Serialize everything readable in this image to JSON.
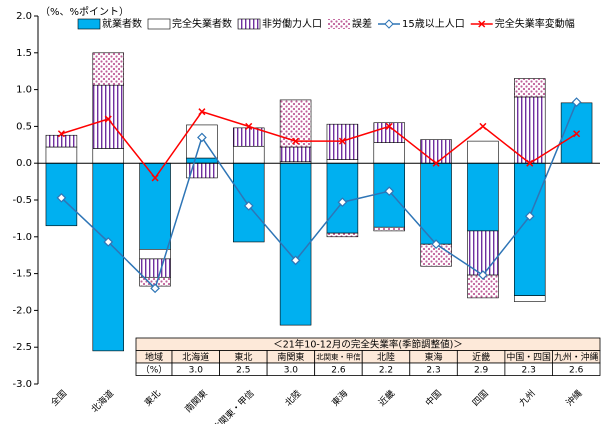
{
  "chart_data": {
    "type": "bar",
    "y_axis_label": "（%、%ポイント）",
    "categories": [
      "全国",
      "北海道",
      "東北",
      "南関東",
      "北関東・甲信",
      "北陸",
      "東海",
      "近畿",
      "中国",
      "四国",
      "九州",
      "沖縄"
    ],
    "ylim": [
      -3.0,
      2.0
    ],
    "yticks": [
      {
        "value": 2.0,
        "label": "2.0"
      },
      {
        "value": 1.5,
        "label": "1.5"
      },
      {
        "value": 1.0,
        "label": "1.0"
      },
      {
        "value": 0.5,
        "label": "0.5"
      },
      {
        "value": 0.0,
        "label": "0.0"
      },
      {
        "value": -0.5,
        "label": "-0.5"
      },
      {
        "value": -1.0,
        "label": "-1.0"
      },
      {
        "value": -1.5,
        "label": "-1.5"
      },
      {
        "value": -2.0,
        "label": "-2.0"
      },
      {
        "value": -2.5,
        "label": "-2.5"
      },
      {
        "value": -3.0,
        "label": "-3.0"
      }
    ],
    "series": [
      {
        "name": "就業者数",
        "type": "bar",
        "color": "#00b0f0",
        "pattern": "solid",
        "values": [
          -0.85,
          -2.55,
          -1.17,
          0.07,
          -1.07,
          -2.2,
          -0.95,
          -0.87,
          -1.1,
          -0.92,
          -1.8,
          0.82
        ]
      },
      {
        "name": "完全失業者数",
        "type": "bar",
        "color": "#ffffff",
        "pattern": "solid",
        "values": [
          0.22,
          0.2,
          -0.13,
          0.45,
          0.23,
          0.02,
          0.05,
          0.28,
          0,
          0.3,
          -0.08,
          0
        ]
      },
      {
        "name": "非労働力人口",
        "type": "bar",
        "color": "#7030a0",
        "pattern": "stripes",
        "values": [
          0.16,
          0.86,
          -0.25,
          -0.2,
          0.25,
          0.2,
          0.48,
          0.27,
          0.32,
          -0.6,
          0.9,
          0
        ]
      },
      {
        "name": "誤差",
        "type": "bar",
        "color": "#c0609a",
        "pattern": "dots",
        "values": [
          0,
          0.44,
          -0.12,
          0,
          0,
          0.64,
          -0.05,
          -0.05,
          -0.3,
          -0.31,
          0.25,
          0
        ]
      },
      {
        "name": "15歳以上人口",
        "type": "line",
        "color": "#2e75b6",
        "marker": "diamond",
        "values": [
          -0.47,
          -1.07,
          -1.7,
          0.35,
          -0.58,
          -1.32,
          -0.53,
          -0.38,
          -1.1,
          -1.52,
          -0.72,
          0.83
        ]
      },
      {
        "name": "完全失業率変動幅",
        "type": "line",
        "color": "#ff0000",
        "marker": "x",
        "values": [
          0.4,
          0.6,
          -0.2,
          0.7,
          0.5,
          0.3,
          0.3,
          0.5,
          0.0,
          0.5,
          0.0,
          0.4
        ]
      }
    ],
    "table": {
      "title": "＜21年10-12月の完全失業率(季節調整値)＞",
      "header": [
        "地域",
        "北海道",
        "東北",
        "南関東",
        "北関東・甲信",
        "北陸",
        "東海",
        "近畿",
        "中国・四国",
        "九州・沖縄"
      ],
      "row": [
        "（%）",
        "3.0",
        "2.5",
        "3.0",
        "2.6",
        "2.2",
        "2.3",
        "2.9",
        "2.3",
        "2.6"
      ]
    }
  }
}
